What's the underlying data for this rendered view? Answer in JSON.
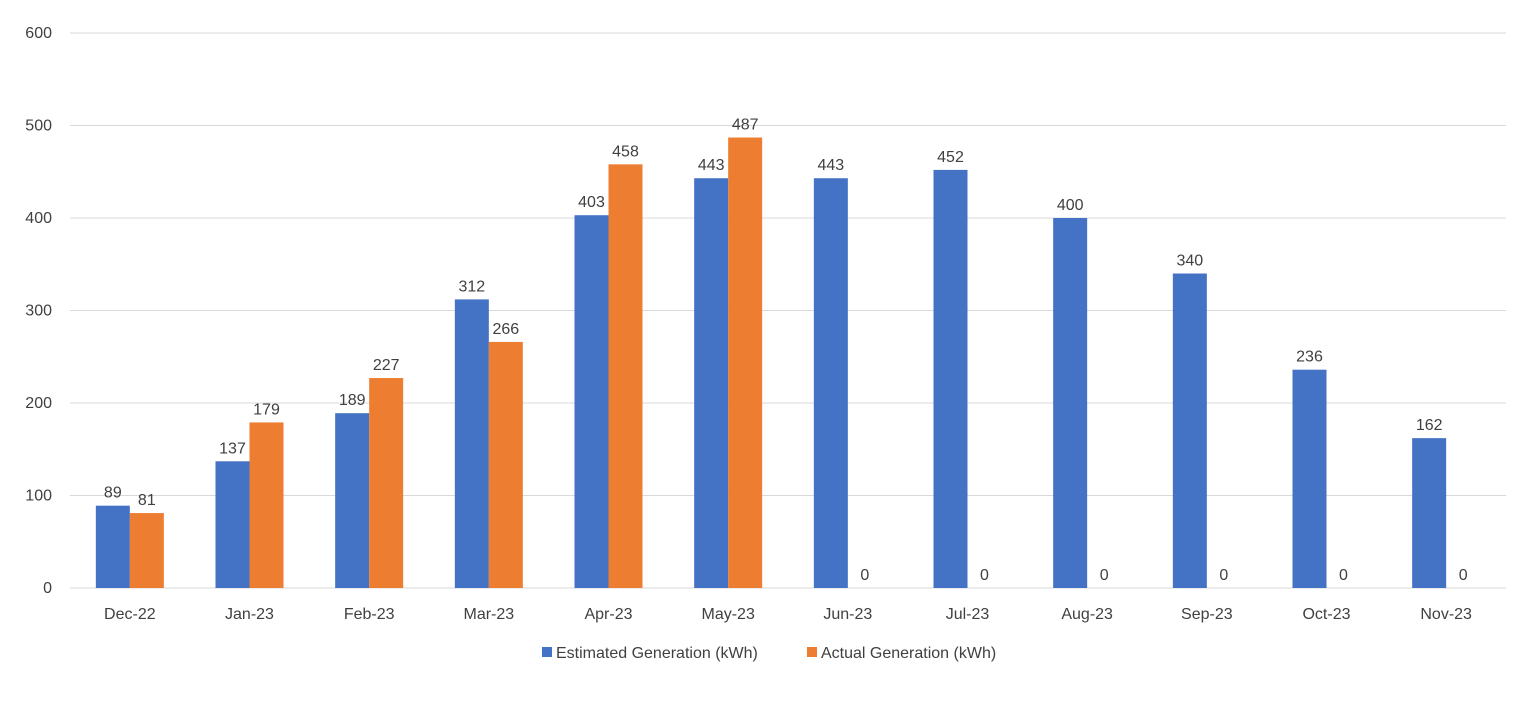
{
  "chart_data": {
    "type": "bar",
    "categories": [
      "Dec-22",
      "Jan-23",
      "Feb-23",
      "Mar-23",
      "Apr-23",
      "May-23",
      "Jun-23",
      "Jul-23",
      "Aug-23",
      "Sep-23",
      "Oct-23",
      "Nov-23"
    ],
    "series": [
      {
        "name": "Estimated Generation (kWh)",
        "color": "#4472c4",
        "values": [
          89,
          137,
          189,
          312,
          403,
          443,
          443,
          452,
          400,
          340,
          236,
          162
        ]
      },
      {
        "name": "Actual Generation (kWh)",
        "color": "#ed7d31",
        "values": [
          81,
          179,
          227,
          266,
          458,
          487,
          0,
          0,
          0,
          0,
          0,
          0
        ]
      }
    ],
    "ylim": [
      0,
      600
    ],
    "yticks": [
      0,
      100,
      200,
      300,
      400,
      500,
      600
    ],
    "grid": true,
    "data_labels": true,
    "legend_position": "bottom"
  }
}
